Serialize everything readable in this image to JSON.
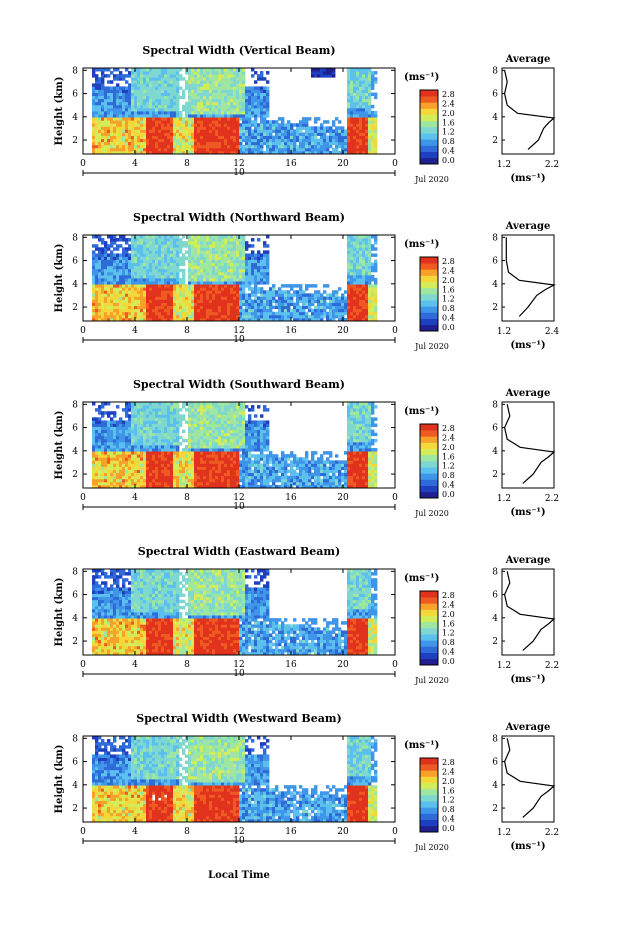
{
  "colors": {
    "colormap": [
      "#1f1f8f",
      "#1e3fc0",
      "#2f6bd8",
      "#3f95e8",
      "#5cc0ee",
      "#7fd8d0",
      "#9fe6a0",
      "#d2ec5a",
      "#f4d83a",
      "#f7a02a",
      "#ef5a22",
      "#e0321c"
    ],
    "no_data": "#ffffff",
    "text": "#000000"
  },
  "shared": {
    "xticks": [
      "0",
      "4",
      "8",
      "12",
      "16",
      "20",
      "0"
    ],
    "yticks": [
      "2",
      "4",
      "6",
      "8"
    ],
    "ylabel": "Height (km)",
    "date_day": "10",
    "date_label": "Jul 2020",
    "colorbar_unit": "(ms⁻¹)",
    "colorbar_ticks": [
      "0.0",
      "0.4",
      "0.8",
      "1.2",
      "1.6",
      "2.0",
      "2.4",
      "2.8"
    ],
    "profile_title": "Average",
    "profile_yticks": [
      "2",
      "4",
      "6",
      "8"
    ],
    "profile_xlabel": "(ms⁻¹)",
    "xlabel": "Local Time"
  },
  "panels": [
    {
      "title": "Spectral Width (Vertical Beam)",
      "profile_xticks": [
        "1.2",
        "2.2"
      ]
    },
    {
      "title": "Spectral Width (Northward Beam)",
      "profile_xticks": [
        "1.2",
        "2.4"
      ]
    },
    {
      "title": "Spectral Width (Southward Beam)",
      "profile_xticks": [
        "1.2",
        "2.2"
      ]
    },
    {
      "title": "Spectral Width (Eastward Beam)",
      "profile_xticks": [
        "1.2",
        "2.2"
      ]
    },
    {
      "title": "Spectral Width (Westward Beam)",
      "profile_xticks": [
        "1.2",
        "2.2"
      ]
    }
  ],
  "chart_data": {
    "type": "heatmap",
    "x_unit": "hour (local time)",
    "x_range": [
      0,
      24
    ],
    "y_unit": "km",
    "y_range": [
      0.8,
      8.2
    ],
    "colorbar_range": [
      0.0,
      2.9
    ],
    "approx_regions": [
      {
        "x": [
          0.8,
          22.5
        ],
        "y": [
          0.8,
          4.0
        ],
        "value_range": [
          0.8,
          2.2
        ],
        "note": "mixed cyan-yellow below ~4 km"
      },
      {
        "x": [
          4.8,
          7.0
        ],
        "y": [
          0.8,
          4.0
        ],
        "value": 2.8,
        "note": "red block"
      },
      {
        "x": [
          8.5,
          11.8
        ],
        "y": [
          0.8,
          4.0
        ],
        "value": 2.8,
        "note": "red block"
      },
      {
        "x": [
          20.3,
          22.0
        ],
        "y": [
          0.8,
          4.0
        ],
        "value": 2.8,
        "note": "red block"
      },
      {
        "x": [
          0.8,
          14.0
        ],
        "y": [
          4.0,
          8.2
        ],
        "value_range": [
          0.3,
          1.3
        ],
        "note": "blue-cyan aloft"
      },
      {
        "x": [
          14.0,
          20.0
        ],
        "y": [
          3.0,
          8.2
        ],
        "note": "no data (white)"
      }
    ],
    "profiles": [
      {
        "beam": "Vertical",
        "x_range": [
          1.2,
          2.2
        ],
        "height": [
          1.2,
          2,
          3,
          3.5,
          3.9,
          4.3,
          5,
          6,
          7,
          8
        ],
        "value": [
          1.7,
          1.9,
          2.0,
          2.1,
          2.2,
          1.5,
          1.3,
          1.25,
          1.3,
          1.25
        ]
      },
      {
        "beam": "Northward",
        "x_range": [
          1.2,
          2.4
        ],
        "height": [
          1.2,
          2,
          3,
          3.5,
          3.9,
          4.3,
          5,
          6,
          7,
          8
        ],
        "value": [
          1.6,
          1.8,
          2.0,
          2.2,
          2.4,
          1.6,
          1.35,
          1.3,
          1.3,
          1.3
        ]
      },
      {
        "beam": "Southward",
        "x_range": [
          1.2,
          2.2
        ],
        "height": [
          1.2,
          2,
          3,
          3.5,
          3.9,
          4.3,
          5,
          6,
          7,
          8
        ],
        "value": [
          1.6,
          1.8,
          1.95,
          2.1,
          2.2,
          1.55,
          1.3,
          1.25,
          1.35,
          1.3
        ]
      },
      {
        "beam": "Eastward",
        "x_range": [
          1.2,
          2.2
        ],
        "height": [
          1.2,
          2,
          3,
          3.5,
          3.9,
          4.3,
          5,
          6,
          7,
          8
        ],
        "value": [
          1.6,
          1.8,
          1.95,
          2.1,
          2.2,
          1.55,
          1.3,
          1.25,
          1.35,
          1.3
        ]
      },
      {
        "beam": "Westward",
        "x_range": [
          1.2,
          2.2
        ],
        "height": [
          1.2,
          2,
          3,
          3.5,
          3.9,
          4.3,
          5,
          6,
          7,
          8
        ],
        "value": [
          1.6,
          1.8,
          1.95,
          2.1,
          2.2,
          1.55,
          1.3,
          1.25,
          1.35,
          1.3
        ]
      }
    ]
  }
}
